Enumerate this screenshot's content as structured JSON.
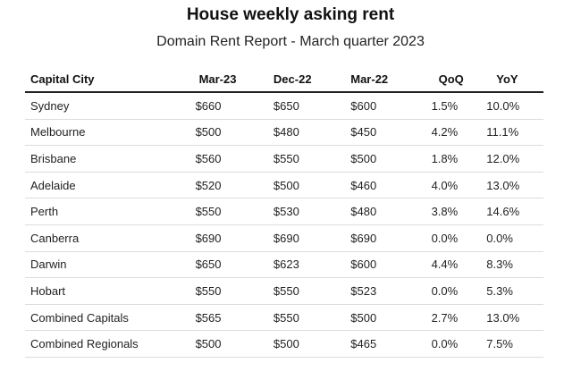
{
  "title": "House weekly asking rent",
  "subtitle": "Domain Rent Report - March quarter 2023",
  "table": {
    "headers": [
      "Capital City",
      "Mar-23",
      "Dec-22",
      "Mar-22",
      "QoQ",
      "YoY"
    ],
    "rows": [
      [
        "Sydney",
        "$660",
        "$650",
        "$600",
        "1.5%",
        "10.0%"
      ],
      [
        "Melbourne",
        "$500",
        "$480",
        "$450",
        "4.2%",
        "11.1%"
      ],
      [
        "Brisbane",
        "$560",
        "$550",
        "$500",
        "1.8%",
        "12.0%"
      ],
      [
        "Adelaide",
        "$520",
        "$500",
        "$460",
        "4.0%",
        "13.0%"
      ],
      [
        "Perth",
        "$550",
        "$530",
        "$480",
        "3.8%",
        "14.6%"
      ],
      [
        "Canberra",
        "$690",
        "$690",
        "$690",
        "0.0%",
        "0.0%"
      ],
      [
        "Darwin",
        "$650",
        "$623",
        "$600",
        "4.4%",
        "8.3%"
      ],
      [
        "Hobart",
        "$550",
        "$550",
        "$523",
        "0.0%",
        "5.3%"
      ],
      [
        "Combined Capitals",
        "$565",
        "$550",
        "$500",
        "2.7%",
        "13.0%"
      ],
      [
        "Combined Regionals",
        "$500",
        "$500",
        "$465",
        "0.0%",
        "7.5%"
      ]
    ]
  }
}
